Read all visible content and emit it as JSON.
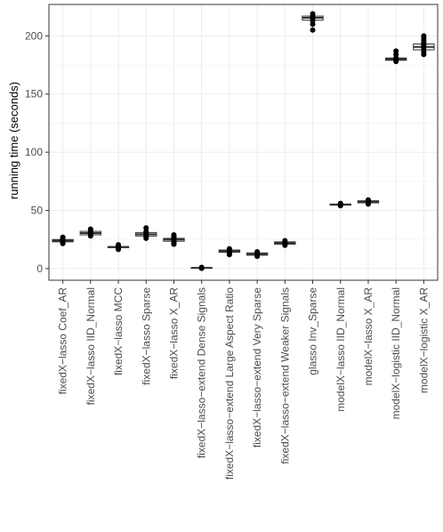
{
  "chart_data": {
    "type": "box",
    "ylabel": "running time (seconds)",
    "xlabel": "",
    "yticks": [
      0,
      50,
      100,
      150,
      200
    ],
    "ylim": [
      -10,
      227
    ],
    "grid": true,
    "categories": [
      {
        "label": "fixedX−lasso Coef_AR",
        "q1": 23,
        "median": 24,
        "q3": 25,
        "whisker_low": 22,
        "whisker_high": 26,
        "points": [
          21.5,
          22.5,
          23,
          24,
          25,
          26,
          27
        ]
      },
      {
        "label": "fixedX−lasso IID_Normal",
        "q1": 29,
        "median": 30.5,
        "q3": 32,
        "whisker_low": 28,
        "whisker_high": 33,
        "points": [
          28,
          29,
          30,
          31,
          32,
          33,
          34
        ]
      },
      {
        "label": "fixedX−lasso MCC",
        "q1": 18,
        "median": 18.5,
        "q3": 19,
        "whisker_low": 17,
        "whisker_high": 20,
        "points": [
          16.5,
          17.5,
          18.5,
          19.5,
          20.5
        ]
      },
      {
        "label": "fixedX−lasso Sparse",
        "q1": 28,
        "median": 29.5,
        "q3": 31,
        "whisker_low": 26,
        "whisker_high": 33,
        "points": [
          26,
          27,
          28,
          29,
          30,
          31,
          32,
          35
        ]
      },
      {
        "label": "fixedX−lasso X_AR",
        "q1": 23.5,
        "median": 25,
        "q3": 26,
        "whisker_low": 22,
        "whisker_high": 28,
        "points": [
          21,
          22,
          23,
          24,
          25,
          26,
          27,
          28,
          29
        ]
      },
      {
        "label": "fixedX−lasso−extend Dense Signals",
        "q1": 0.3,
        "median": 0.6,
        "q3": 0.9,
        "whisker_low": 0.1,
        "whisker_high": 1.2,
        "points": [
          0.2,
          0.5,
          0.8,
          1.1
        ]
      },
      {
        "label": "fixedX−lasso−extend Large Aspect Ratio",
        "q1": 14,
        "median": 15,
        "q3": 16,
        "whisker_low": 12,
        "whisker_high": 17,
        "points": [
          12,
          13,
          14,
          15,
          16,
          17
        ]
      },
      {
        "label": "fixedX−lasso−extend Very Sparse",
        "q1": 11.5,
        "median": 12.5,
        "q3": 13.5,
        "whisker_low": 10.5,
        "whisker_high": 14.5,
        "points": [
          10.5,
          11.5,
          12.5,
          13.5,
          14.5
        ]
      },
      {
        "label": "fixedX−lasso−extend Weaker Signals",
        "q1": 21,
        "median": 22,
        "q3": 23,
        "whisker_low": 20,
        "whisker_high": 24,
        "points": [
          20,
          21,
          22,
          23,
          24
        ]
      },
      {
        "label": "glasso Inv_Sparse",
        "q1": 213.5,
        "median": 215.5,
        "q3": 217,
        "whisker_low": 211,
        "whisker_high": 219,
        "points": [
          205,
          210,
          213,
          215,
          217,
          219
        ]
      },
      {
        "label": "modelX−lasso IID_Normal",
        "q1": 54.5,
        "median": 55,
        "q3": 55.5,
        "whisker_low": 54,
        "whisker_high": 56,
        "points": [
          54,
          55,
          56
        ]
      },
      {
        "label": "modelX−lasso X_AR",
        "q1": 56.5,
        "median": 57.5,
        "q3": 58.3,
        "whisker_low": 55.5,
        "whisker_high": 59,
        "points": [
          55.5,
          56.5,
          57.5,
          58.5,
          59
        ]
      },
      {
        "label": "modelX−logistic IID_Normal",
        "q1": 179,
        "median": 180,
        "q3": 181,
        "whisker_low": 178,
        "whisker_high": 182,
        "points": [
          178,
          179,
          180,
          181,
          184,
          187
        ]
      },
      {
        "label": "modelX−logistic X_AR",
        "q1": 188,
        "median": 190.5,
        "q3": 193,
        "whisker_low": 184,
        "whisker_high": 198,
        "points": [
          184,
          186,
          188,
          190,
          192,
          194,
          196,
          198,
          200
        ]
      }
    ]
  }
}
